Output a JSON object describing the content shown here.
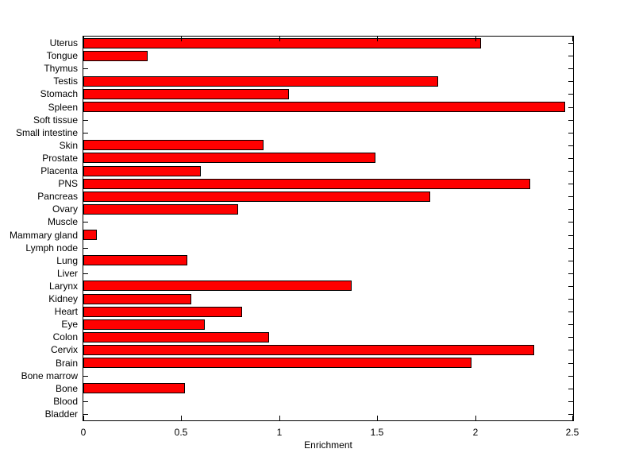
{
  "chart_data": {
    "type": "bar",
    "orientation": "horizontal",
    "title": "",
    "xlabel": "Enrichment",
    "ylabel": "",
    "xlim": [
      0,
      2.5
    ],
    "xticks": [
      0,
      0.5,
      1,
      1.5,
      2,
      2.5
    ],
    "xtick_labels": [
      "0",
      "0.5",
      "1",
      "1.5",
      "2",
      "2.5"
    ],
    "grid": false,
    "legend": "none",
    "bar_color": "#ff0000",
    "bar_edge_color": "#000000",
    "axis_color": "#000000",
    "background_color": "#ffffff",
    "categories": [
      "Uterus",
      "Tongue",
      "Thymus",
      "Testis",
      "Stomach",
      "Spleen",
      "Soft tissue",
      "Small intestine",
      "Skin",
      "Prostate",
      "Placenta",
      "PNS",
      "Pancreas",
      "Ovary",
      "Muscle",
      "Mammary gland",
      "Lymph node",
      "Lung",
      "Liver",
      "Larynx",
      "Kidney",
      "Heart",
      "Eye",
      "Colon",
      "Cervix",
      "Brain",
      "Bone marrow",
      "Bone",
      "Blood",
      "Bladder"
    ],
    "values": [
      2.03,
      0.33,
      0,
      1.81,
      1.05,
      2.46,
      0,
      0,
      0.92,
      1.49,
      0.6,
      2.28,
      1.77,
      0.79,
      0,
      0.07,
      0,
      0.53,
      0,
      1.37,
      0.55,
      0.81,
      0.62,
      0.95,
      2.3,
      1.98,
      0,
      0.52,
      0,
      0
    ]
  }
}
